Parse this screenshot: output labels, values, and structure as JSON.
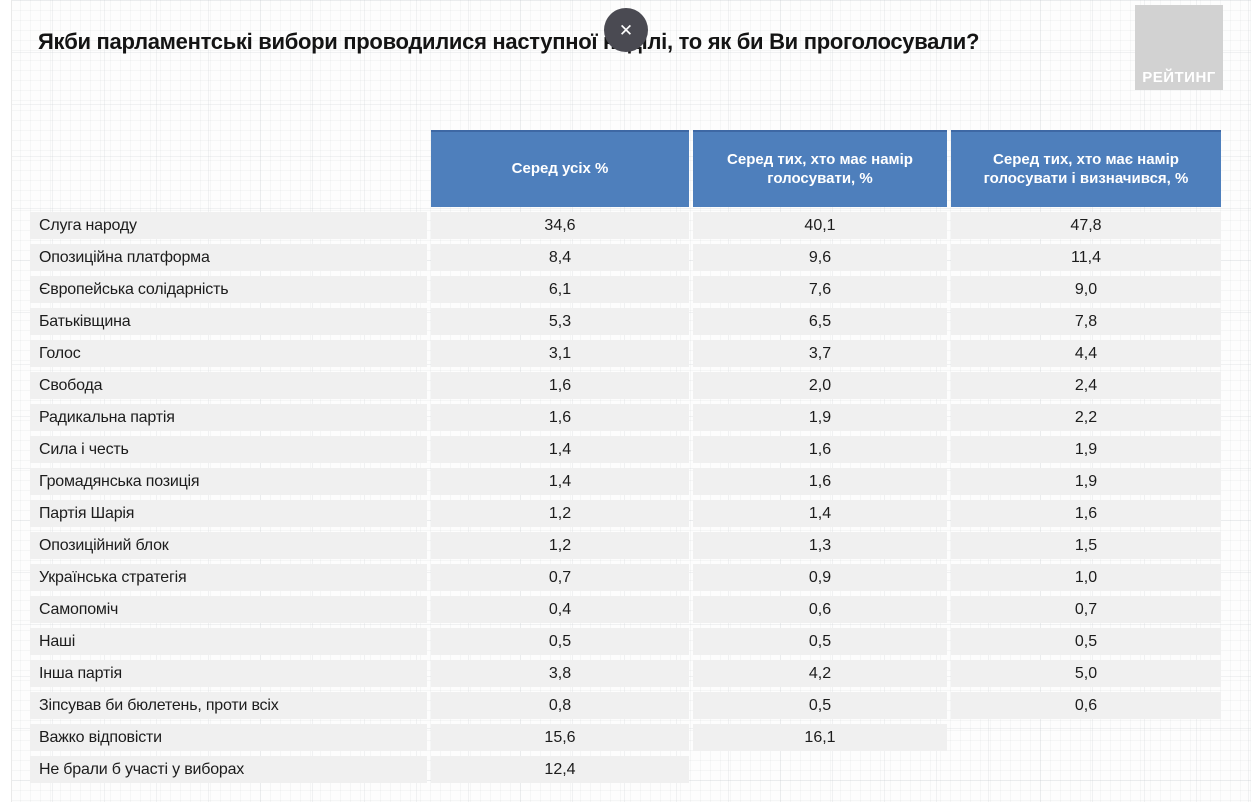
{
  "page": {
    "title": "Якби парламентські вибори проводилися наступної неділі, то як би Ви проголосували?",
    "close_glyph": "✕",
    "logo_text": "РЕЙТИНГ"
  },
  "icons": {
    "close-icon": "✕"
  },
  "colors": {
    "header_blue": "#4e7fbc",
    "header_blue_border": "#3e68a4",
    "row_gray": "#f0f0f0",
    "logo_gray": "#d2d2d2",
    "close_button_bg": "#4a4a52",
    "title_text": "#141414"
  },
  "chart_data": {
    "type": "table",
    "title": "Якби парламентські вибори проводилися наступної неділі, то як би Ви проголосували?",
    "columns": [
      "Серед усіх %",
      "Серед тих, хто має намір голосувати, %",
      "Серед тих, хто має намір голосувати і визначився, %"
    ],
    "rows": [
      {
        "label": "Слуга народу",
        "values": [
          "34,6",
          "40,1",
          "47,8"
        ]
      },
      {
        "label": "Опозиційна платформа",
        "values": [
          "8,4",
          "9,6",
          "11,4"
        ]
      },
      {
        "label": "Європейська солідарність",
        "values": [
          "6,1",
          "7,6",
          "9,0"
        ]
      },
      {
        "label": "Батьківщина",
        "values": [
          "5,3",
          "6,5",
          "7,8"
        ]
      },
      {
        "label": "Голос",
        "values": [
          "3,1",
          "3,7",
          "4,4"
        ]
      },
      {
        "label": "Свобода",
        "values": [
          "1,6",
          "2,0",
          "2,4"
        ]
      },
      {
        "label": "Радикальна партія",
        "values": [
          "1,6",
          "1,9",
          "2,2"
        ]
      },
      {
        "label": "Сила і честь",
        "values": [
          "1,4",
          "1,6",
          "1,9"
        ]
      },
      {
        "label": "Громадянська позиція",
        "values": [
          "1,4",
          "1,6",
          "1,9"
        ]
      },
      {
        "label": "Партія Шарія",
        "values": [
          "1,2",
          "1,4",
          "1,6"
        ]
      },
      {
        "label": "Опозиційний блок",
        "values": [
          "1,2",
          "1,3",
          "1,5"
        ]
      },
      {
        "label": "Українська стратегія",
        "values": [
          "0,7",
          "0,9",
          "1,0"
        ]
      },
      {
        "label": "Самопоміч",
        "values": [
          "0,4",
          "0,6",
          "0,7"
        ]
      },
      {
        "label": "Наші",
        "values": [
          "0,5",
          "0,5",
          "0,5"
        ]
      },
      {
        "label": "Інша партія",
        "values": [
          "3,8",
          "4,2",
          "5,0"
        ]
      },
      {
        "label": "Зіпсував би бюлетень, проти всіх",
        "values": [
          "0,8",
          "0,5",
          "0,6"
        ]
      },
      {
        "label": "Важко відповісти",
        "values": [
          "15,6",
          "16,1",
          null
        ]
      },
      {
        "label": "Не брали б участі у виборах",
        "values": [
          "12,4",
          null,
          null
        ]
      }
    ]
  }
}
